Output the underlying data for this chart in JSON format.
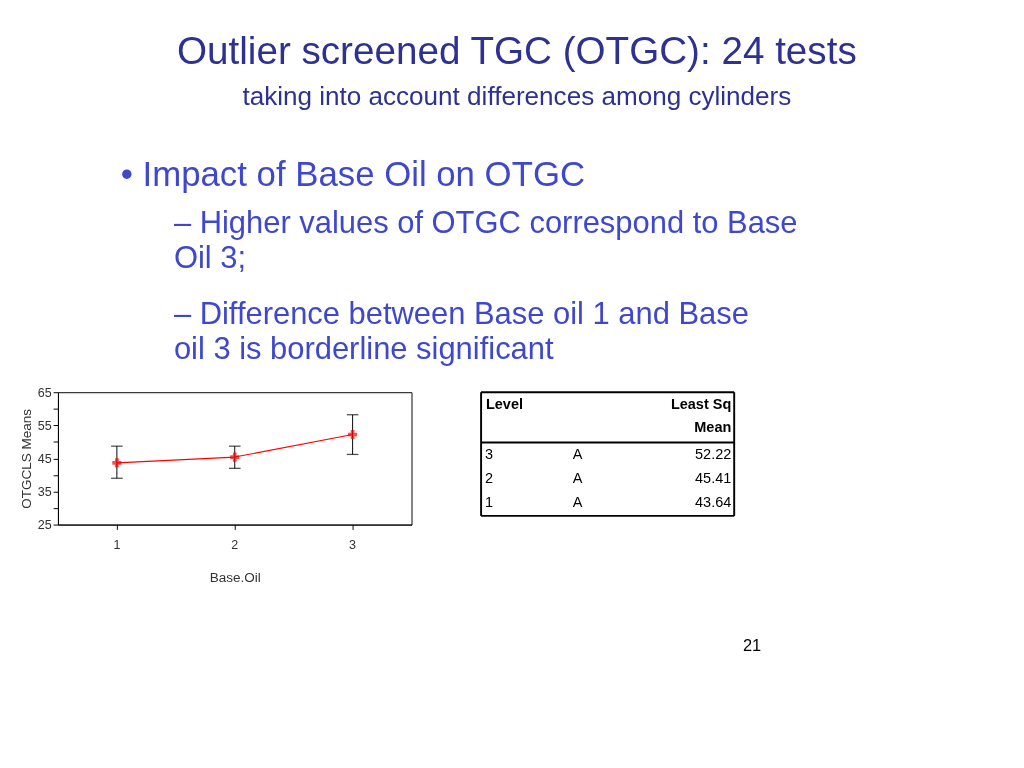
{
  "chart_data": {
    "type": "line",
    "title": "Outlier screened TGC (OTGC): 24 tests",
    "subtitle": "taking into account differences among cylinders",
    "xlabel": "Base.Oil",
    "ylabel": "OTGCLS Means",
    "categories": [
      "1",
      "2",
      "3"
    ],
    "series": [
      {
        "color": "#ff0000",
        "values": [
          43.64,
          45.41,
          52.22
        ],
        "errors": [
          [
            39.0,
            48.7
          ],
          [
            42.0,
            48.7
          ],
          [
            46.2,
            58.2
          ]
        ]
      }
    ],
    "ylim": [
      25,
      65
    ],
    "yticks": [
      25,
      {
        "value": 30,
        "label": null
      },
      35,
      {
        "value": 40,
        "label": null
      },
      45,
      {
        "value": 50,
        "label": null
      },
      55,
      {
        "value": 60,
        "label": null
      },
      65
    ],
    "grid": false,
    "marker": "cross",
    "line_style": "solid",
    "annotations": [
      "• Impact of Base Oil on OTGC",
      "– Higher values of OTGC correspond to Base Oil 3;",
      "– Difference between Base oil 1 and Base oil 3 is borderline significant",
      "Level",
      "Least Sq Mean",
      "3",
      "A",
      "52.22",
      "2",
      "A",
      "45.41",
      "1",
      "A",
      "43.64",
      "21"
    ]
  }
}
